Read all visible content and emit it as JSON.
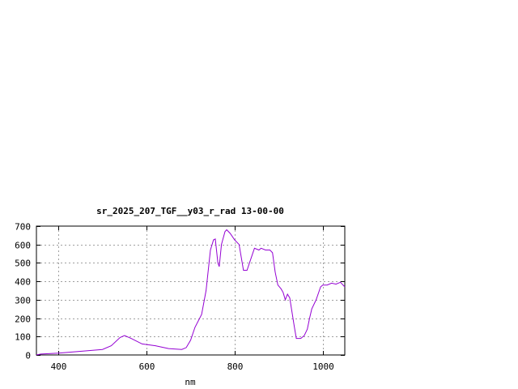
{
  "chart_data": {
    "type": "line",
    "title": "sr_2025_207_TGF__y03_r_rad 13-00-00",
    "xlabel": "nm",
    "ylabel": "",
    "xlim": [
      350,
      1050
    ],
    "ylim": [
      0,
      700
    ],
    "grid": true,
    "x_ticks": [
      400,
      600,
      800,
      1000
    ],
    "y_ticks": [
      0,
      100,
      200,
      300,
      400,
      500,
      600,
      700
    ],
    "series_color": "#9400d3",
    "series": [
      {
        "x": [
          350,
          360,
          400,
          450,
          500,
          520,
          540,
          550,
          565,
          590,
          620,
          650,
          680,
          690,
          700,
          710,
          725,
          735,
          745,
          752,
          756,
          762,
          765,
          770,
          778,
          782,
          790,
          800,
          810,
          815,
          820,
          828,
          835,
          845,
          855,
          860,
          870,
          880,
          886,
          892,
          898,
          905,
          910,
          915,
          920,
          925,
          935,
          940,
          950,
          958,
          965,
          970,
          975,
          985,
          995,
          1000,
          1010,
          1020,
          1030,
          1040,
          1046,
          1050
        ],
        "y": [
          0,
          5,
          10,
          20,
          30,
          50,
          95,
          105,
          90,
          60,
          50,
          35,
          30,
          40,
          80,
          150,
          220,
          350,
          570,
          625,
          630,
          500,
          480,
          600,
          670,
          680,
          660,
          625,
          600,
          530,
          460,
          460,
          510,
          580,
          570,
          580,
          570,
          570,
          555,
          450,
          380,
          360,
          340,
          300,
          330,
          310,
          160,
          90,
          90,
          105,
          140,
          200,
          250,
          300,
          370,
          380,
          380,
          390,
          385,
          395,
          380,
          370
        ]
      }
    ]
  }
}
